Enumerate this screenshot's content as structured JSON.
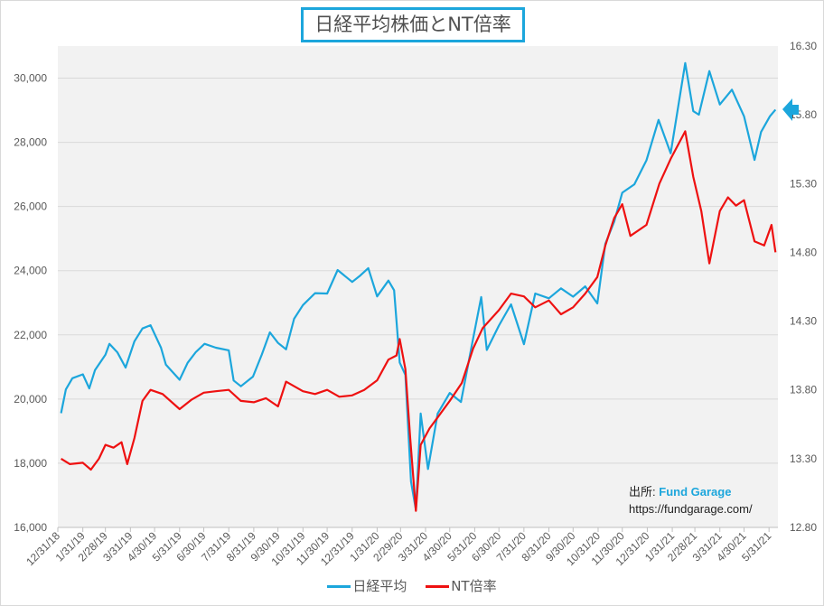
{
  "chart_data": {
    "type": "line",
    "title": "日経平均株価とNT倍率",
    "x_tick_labels": [
      "12/31/18",
      "1/31/19",
      "2/28/19",
      "3/31/19",
      "4/30/19",
      "5/31/19",
      "6/30/19",
      "7/31/19",
      "8/31/19",
      "9/30/19",
      "10/31/19",
      "11/30/19",
      "12/31/19",
      "1/31/20",
      "2/29/20",
      "3/31/20",
      "4/30/20",
      "5/31/20",
      "6/30/20",
      "7/31/20",
      "8/31/20",
      "9/30/20",
      "10/31/20",
      "11/30/20",
      "12/31/20",
      "1/31/21",
      "2/28/21",
      "3/31/21",
      "4/30/21",
      "5/31/21"
    ],
    "x_range": [
      "2018-12-31",
      "2021-06-11"
    ],
    "y_left": {
      "ticks": [
        "16,000",
        "18,000",
        "20,000",
        "22,000",
        "24,000",
        "26,000",
        "28,000",
        "30,000"
      ],
      "range": [
        16000,
        31000
      ]
    },
    "y_right": {
      "ticks": [
        "12.80",
        "13.30",
        "13.80",
        "14.30",
        "14.80",
        "15.30",
        "15.80",
        "16.30"
      ],
      "range": [
        12.8,
        16.3
      ]
    },
    "grid": "horizontal",
    "legend_position": "bottom",
    "series": [
      {
        "name": "日経平均",
        "color": "#1ca6dc",
        "axis": "left",
        "points": [
          [
            "2019-01-04",
            19560
          ],
          [
            "2019-01-10",
            20300
          ],
          [
            "2019-01-18",
            20650
          ],
          [
            "2019-01-31",
            20770
          ],
          [
            "2019-02-08",
            20330
          ],
          [
            "2019-02-15",
            20900
          ],
          [
            "2019-02-28",
            21380
          ],
          [
            "2019-03-05",
            21720
          ],
          [
            "2019-03-15",
            21450
          ],
          [
            "2019-03-25",
            20980
          ],
          [
            "2019-04-05",
            21800
          ],
          [
            "2019-04-15",
            22200
          ],
          [
            "2019-04-25",
            22300
          ],
          [
            "2019-05-08",
            21600
          ],
          [
            "2019-05-14",
            21070
          ],
          [
            "2019-05-31",
            20600
          ],
          [
            "2019-06-10",
            21130
          ],
          [
            "2019-06-20",
            21460
          ],
          [
            "2019-07-01",
            21720
          ],
          [
            "2019-07-15",
            21600
          ],
          [
            "2019-07-31",
            21520
          ],
          [
            "2019-08-06",
            20580
          ],
          [
            "2019-08-15",
            20400
          ],
          [
            "2019-08-30",
            20700
          ],
          [
            "2019-09-10",
            21390
          ],
          [
            "2019-09-20",
            22080
          ],
          [
            "2019-09-30",
            21750
          ],
          [
            "2019-10-10",
            21550
          ],
          [
            "2019-10-20",
            22500
          ],
          [
            "2019-10-31",
            22930
          ],
          [
            "2019-11-15",
            23300
          ],
          [
            "2019-11-30",
            23290
          ],
          [
            "2019-12-13",
            24020
          ],
          [
            "2019-12-31",
            23650
          ],
          [
            "2019-01-01",
            null
          ],
          [
            "2020-01-10",
            23850
          ],
          [
            "2020-01-20",
            24080
          ],
          [
            "2020-01-31",
            23200
          ],
          [
            "2020-02-14",
            23690
          ],
          [
            "2020-02-21",
            23390
          ],
          [
            "2020-02-28",
            21140
          ],
          [
            "2020-03-06",
            20750
          ],
          [
            "2020-03-13",
            17430
          ],
          [
            "2020-03-19",
            16550
          ],
          [
            "2020-03-25",
            19550
          ],
          [
            "2020-04-03",
            17820
          ],
          [
            "2020-04-15",
            19550
          ],
          [
            "2020-04-30",
            20190
          ],
          [
            "2020-05-14",
            19910
          ],
          [
            "2020-05-29",
            21880
          ],
          [
            "2020-06-08",
            23180
          ],
          [
            "2020-06-15",
            21530
          ],
          [
            "2020-06-30",
            22290
          ],
          [
            "2020-07-15",
            22950
          ],
          [
            "2020-07-31",
            21710
          ],
          [
            "2020-08-14",
            23290
          ],
          [
            "2020-08-31",
            23140
          ],
          [
            "2020-09-15",
            23450
          ],
          [
            "2020-09-30",
            23190
          ],
          [
            "2020-10-15",
            23510
          ],
          [
            "2020-10-30",
            22980
          ],
          [
            "2020-11-09",
            24840
          ],
          [
            "2020-11-20",
            25530
          ],
          [
            "2020-11-30",
            26430
          ],
          [
            "2020-12-15",
            26690
          ],
          [
            "2020-12-30",
            27440
          ],
          [
            "2021-01-14",
            28700
          ],
          [
            "2021-01-29",
            27660
          ],
          [
            "2021-02-16",
            30470
          ],
          [
            "2021-02-26",
            28970
          ],
          [
            "2021-03-05",
            28860
          ],
          [
            "2021-03-18",
            30220
          ],
          [
            "2021-03-31",
            29180
          ],
          [
            "2021-04-15",
            29640
          ],
          [
            "2021-04-30",
            28810
          ],
          [
            "2021-05-13",
            27450
          ],
          [
            "2021-05-21",
            28320
          ],
          [
            "2021-06-01",
            28810
          ],
          [
            "2021-06-08",
            29020
          ]
        ]
      },
      {
        "name": "NT倍率",
        "color": "#ee1111",
        "axis": "right",
        "points": [
          [
            "2019-01-04",
            13.3
          ],
          [
            "2019-01-15",
            13.26
          ],
          [
            "2019-01-31",
            13.27
          ],
          [
            "2019-02-10",
            13.22
          ],
          [
            "2019-02-20",
            13.3
          ],
          [
            "2019-02-28",
            13.4
          ],
          [
            "2019-03-10",
            13.38
          ],
          [
            "2019-03-20",
            13.42
          ],
          [
            "2019-03-27",
            13.26
          ],
          [
            "2019-04-05",
            13.45
          ],
          [
            "2019-04-15",
            13.72
          ],
          [
            "2019-04-25",
            13.8
          ],
          [
            "2019-05-10",
            13.77
          ],
          [
            "2019-05-31",
            13.66
          ],
          [
            "2019-06-15",
            13.73
          ],
          [
            "2019-06-30",
            13.78
          ],
          [
            "2019-07-15",
            13.79
          ],
          [
            "2019-07-31",
            13.8
          ],
          [
            "2019-08-15",
            13.72
          ],
          [
            "2019-08-31",
            13.71
          ],
          [
            "2019-09-15",
            13.74
          ],
          [
            "2019-09-30",
            13.68
          ],
          [
            "2019-10-10",
            13.86
          ],
          [
            "2019-10-31",
            13.79
          ],
          [
            "2019-11-15",
            13.77
          ],
          [
            "2019-11-30",
            13.8
          ],
          [
            "2019-12-15",
            13.75
          ],
          [
            "2019-12-31",
            13.76
          ],
          [
            "2020-01-15",
            13.8
          ],
          [
            "2020-01-31",
            13.87
          ],
          [
            "2020-02-14",
            14.02
          ],
          [
            "2020-02-24",
            14.05
          ],
          [
            "2020-02-28",
            14.17
          ],
          [
            "2020-03-06",
            13.95
          ],
          [
            "2020-03-12",
            13.45
          ],
          [
            "2020-03-19",
            12.92
          ],
          [
            "2020-03-25",
            13.4
          ],
          [
            "2020-04-05",
            13.52
          ],
          [
            "2020-04-15",
            13.6
          ],
          [
            "2020-04-30",
            13.72
          ],
          [
            "2020-05-15",
            13.85
          ],
          [
            "2020-05-29",
            14.1
          ],
          [
            "2020-06-10",
            14.25
          ],
          [
            "2020-06-30",
            14.38
          ],
          [
            "2020-07-15",
            14.5
          ],
          [
            "2020-07-31",
            14.48
          ],
          [
            "2020-08-14",
            14.4
          ],
          [
            "2020-08-31",
            14.45
          ],
          [
            "2020-09-15",
            14.35
          ],
          [
            "2020-09-30",
            14.4
          ],
          [
            "2020-10-15",
            14.5
          ],
          [
            "2020-10-30",
            14.62
          ],
          [
            "2020-11-09",
            14.85
          ],
          [
            "2020-11-20",
            15.05
          ],
          [
            "2020-11-30",
            15.15
          ],
          [
            "2020-12-10",
            14.92
          ],
          [
            "2020-12-30",
            15.0
          ],
          [
            "2021-01-15",
            15.3
          ],
          [
            "2021-01-29",
            15.48
          ],
          [
            "2021-02-16",
            15.68
          ],
          [
            "2021-02-26",
            15.35
          ],
          [
            "2021-03-08",
            15.1
          ],
          [
            "2021-03-18",
            14.72
          ],
          [
            "2021-03-31",
            15.1
          ],
          [
            "2021-04-10",
            15.2
          ],
          [
            "2021-04-20",
            15.14
          ],
          [
            "2021-04-30",
            15.18
          ],
          [
            "2021-05-13",
            14.88
          ],
          [
            "2021-05-25",
            14.85
          ],
          [
            "2021-06-03",
            15.0
          ],
          [
            "2021-06-08",
            14.8
          ]
        ]
      }
    ]
  },
  "source": {
    "label": "出所:",
    "name": "Fund Garage",
    "url": "https://fundgarage.com/"
  },
  "marker": {
    "name": "arrow-left-icon",
    "color": "#1ca6dc"
  }
}
